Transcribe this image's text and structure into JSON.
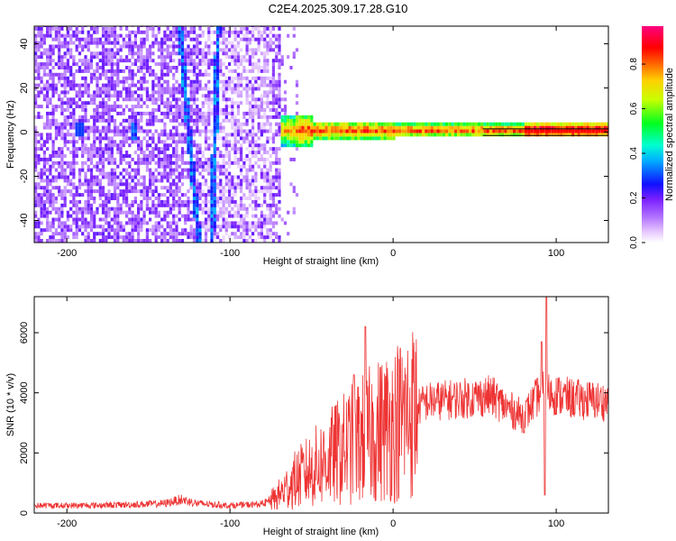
{
  "title": "C2E4.2025.309.17.28.G10",
  "colors": {
    "snr_line": "#ee3333",
    "background": "#ffffff",
    "axis": "#000000",
    "ridge_line": "#000000"
  },
  "chart_data": [
    {
      "type": "heatmap",
      "xlabel": "Height of straight line (km)",
      "ylabel": "Frequency (Hz)",
      "xlim": [
        -220,
        132
      ],
      "ylim": [
        -50,
        48
      ],
      "xticks": [
        "-200",
        "-100",
        "0",
        "100"
      ],
      "yticks": [
        "-40",
        "-20",
        "0",
        "20",
        "40"
      ],
      "colorbar": {
        "label": "Normalized spectral amplitude",
        "range": [
          0,
          0.97
        ],
        "ticks": [
          "0.0",
          "0.2",
          "0.4",
          "0.6",
          "0.8"
        ],
        "colormap": "rainbow (white-purple-blue-cyan-green-yellow-red-magenta)"
      },
      "features": {
        "noise_region_x": [
          -220,
          -70
        ],
        "signal_band_x": [
          -70,
          132
        ],
        "signal_band_frequency": 0,
        "strong_ridge_x": [
          80,
          132
        ],
        "diagonal_streak": {
          "x_at_top": -132,
          "x_at_bottom": -120
        },
        "diagonal_streak_2": {
          "x_at_top": -108,
          "x_at_bottom": -112
        }
      }
    },
    {
      "type": "line",
      "xlabel": "Height of straight line (km)",
      "ylabel": "SNR (10 * v/v)",
      "xlim": [
        -220,
        132
      ],
      "ylim": [
        0,
        7200
      ],
      "xticks": [
        "-200",
        "-100",
        "0",
        "100"
      ],
      "yticks": [
        "0",
        "2000",
        "4000",
        "6000"
      ],
      "grid": false,
      "series": [
        {
          "profile": {
            "x": [
              -220,
              -200,
              -180,
              -160,
              -140,
              -130,
              -120,
              -100,
              -80,
              -72,
              -60,
              -40,
              -25,
              -10,
              0,
              10,
              20,
              40,
              60,
              70,
              80,
              90,
              95,
              110,
              132
            ],
            "y": [
              250,
              250,
              260,
              280,
              320,
              450,
              320,
              250,
              300,
              500,
              1100,
              1800,
              2300,
              2700,
              3000,
              3300,
              3700,
              3800,
              3900,
              3500,
              3200,
              4000,
              4000,
              3800,
              3700
            ]
          },
          "peaks": [
            {
              "x": -17,
              "y": 6200
            },
            {
              "x": -24,
              "y": 4600
            },
            {
              "x": 91,
              "y": 5700
            },
            {
              "x": 94,
              "y": 7200
            },
            {
              "x": 93,
              "y": 600
            }
          ]
        }
      ]
    }
  ]
}
